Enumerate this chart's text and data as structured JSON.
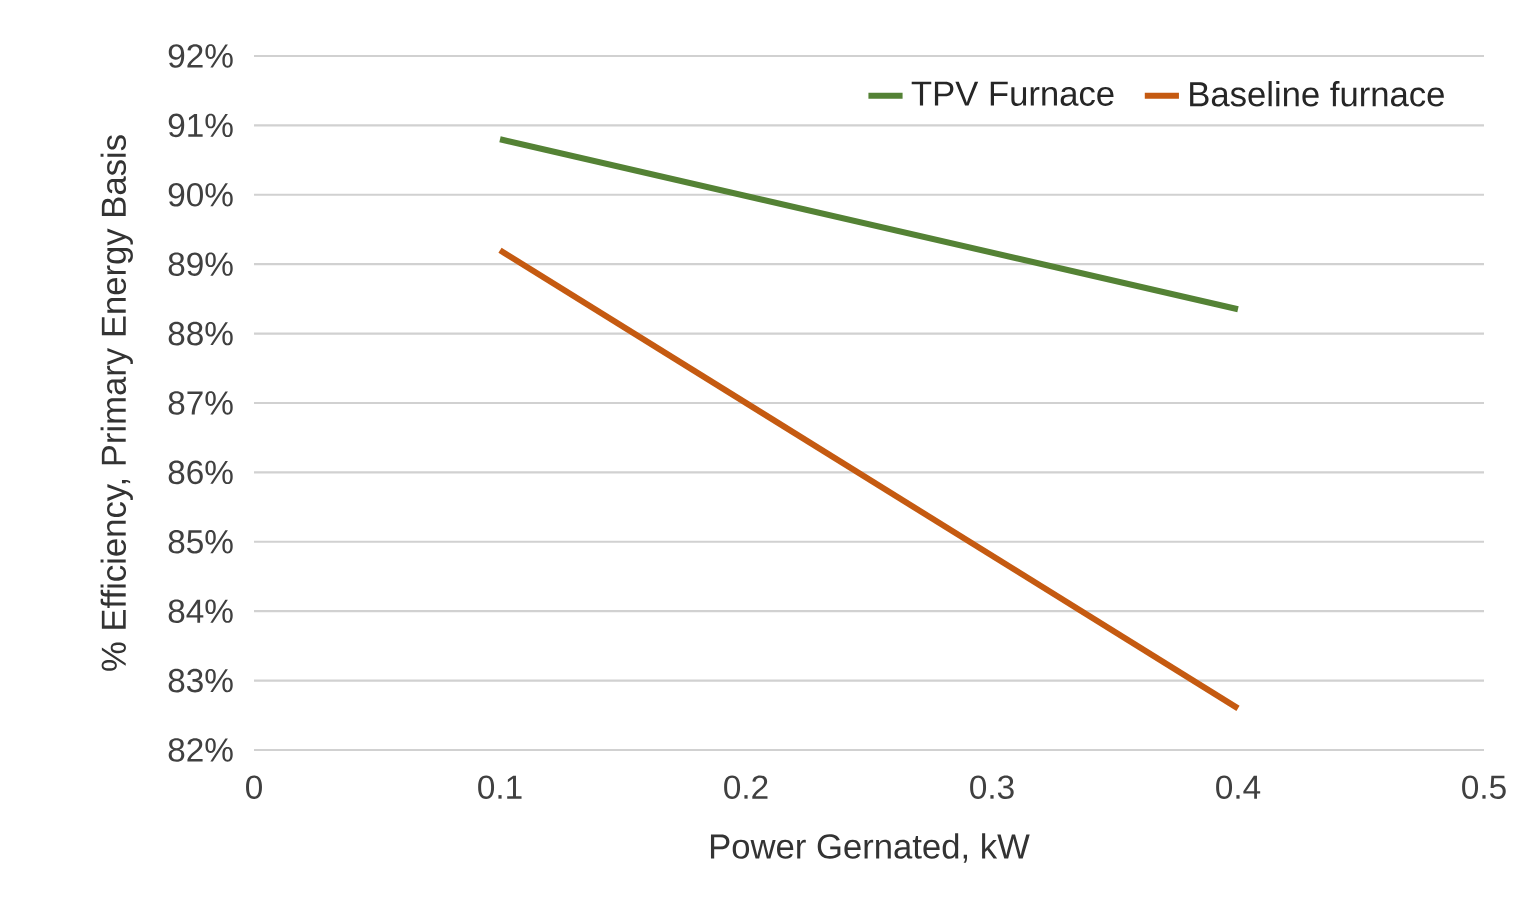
{
  "chart_data": {
    "type": "line",
    "xlabel": "Power Gernated, kW",
    "ylabel": "% Efficiency, Primary Energy Basis",
    "x": [
      0.1,
      0.4
    ],
    "series": [
      {
        "name": "TPV Furnace",
        "color": "#548235",
        "values": [
          90.8,
          88.35
        ]
      },
      {
        "name": "Baseline furnace",
        "color": "#c55a11",
        "values": [
          89.2,
          82.6
        ]
      }
    ],
    "xlim": [
      0,
      0.5
    ],
    "xticks": [
      0,
      0.1,
      0.2,
      0.3,
      0.4,
      0.5
    ],
    "ylim": [
      82,
      92
    ],
    "yticks": [
      {
        "value": 82,
        "label": "82%"
      },
      {
        "value": 83,
        "label": "83%"
      },
      {
        "value": 84,
        "label": "84%"
      },
      {
        "value": 85,
        "label": "85%"
      },
      {
        "value": 86,
        "label": "86%"
      },
      {
        "value": 87,
        "label": "87%"
      },
      {
        "value": 88,
        "label": "88%"
      },
      {
        "value": 89,
        "label": "89%"
      },
      {
        "value": 90,
        "label": "90%"
      },
      {
        "value": 91,
        "label": "91%"
      },
      {
        "value": 92,
        "label": "92%"
      }
    ],
    "grid": "y",
    "legend": "top right"
  }
}
